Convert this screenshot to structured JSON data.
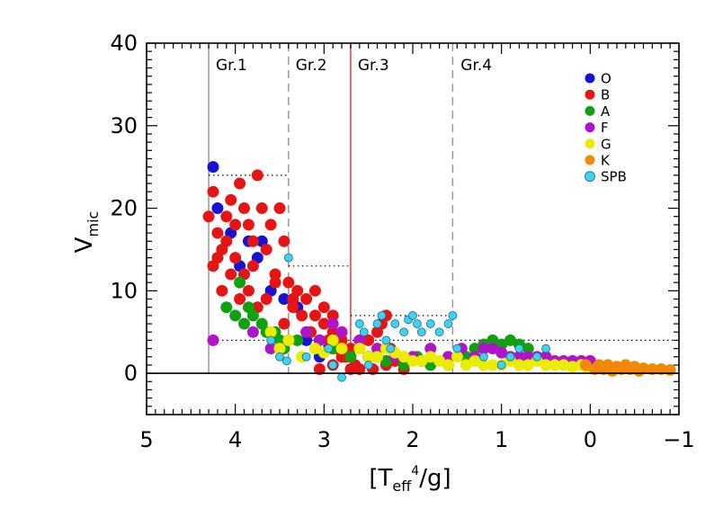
{
  "chart_data": {
    "type": "scatter",
    "title": "",
    "xlabel_parts": {
      "open": "[T",
      "sub": "eff",
      "sup": "4",
      "close": "/g]"
    },
    "ylabel_parts": {
      "main": "V",
      "sub": "mic"
    },
    "xlim": [
      5,
      -1
    ],
    "ylim": [
      -5,
      40
    ],
    "x_ticks": [
      5,
      4,
      3,
      2,
      1,
      0,
      -1
    ],
    "x_tick_labels": [
      "5",
      "4",
      "3",
      "2",
      "1",
      "0",
      "−1"
    ],
    "y_ticks": [
      0,
      10,
      20,
      30,
      40
    ],
    "y_tick_labels": [
      "0",
      "10",
      "20",
      "30",
      "40"
    ],
    "zero_line": 0,
    "group_boundaries": [
      {
        "x": 4.3,
        "style": "solid",
        "color": "#999999"
      },
      {
        "x": 3.4,
        "style": "dashed",
        "color": "#999999"
      },
      {
        "x": 2.7,
        "style": "solid",
        "color": "#e0403a"
      },
      {
        "x": 1.55,
        "style": "dashed",
        "color": "#999999"
      }
    ],
    "group_labels": [
      {
        "text": "Gr.1",
        "x": 4.22
      },
      {
        "text": "Gr.2",
        "x": 3.32
      },
      {
        "text": "Gr.3",
        "x": 2.62
      },
      {
        "text": "Gr.4",
        "x": 1.46
      }
    ],
    "dotted_limits": [
      {
        "x1": 4.3,
        "x2": 3.4,
        "y": 24
      },
      {
        "x1": 3.4,
        "x2": 2.7,
        "y": 13
      },
      {
        "x1": 2.7,
        "x2": 1.55,
        "y": 7
      },
      {
        "x1": 4.3,
        "x2": -0.95,
        "y": 4
      }
    ],
    "legend_position": "top-right",
    "series": [
      {
        "name": "O",
        "color": "#1414d2",
        "points": [
          [
            4.25,
            25
          ],
          [
            4.2,
            20
          ],
          [
            4.05,
            17
          ],
          [
            3.95,
            13
          ],
          [
            3.85,
            16
          ],
          [
            3.75,
            14
          ],
          [
            3.7,
            16
          ],
          [
            3.6,
            10
          ],
          [
            3.45,
            9
          ],
          [
            3.3,
            8
          ],
          [
            3.2,
            4
          ],
          [
            3.05,
            2
          ],
          [
            2.95,
            3
          ],
          [
            2.5,
            2
          ],
          [
            2.2,
            2
          ],
          [
            1.9,
            1.5
          ]
        ]
      },
      {
        "name": "B",
        "color": "#e61515",
        "points": [
          [
            4.3,
            19
          ],
          [
            4.25,
            22
          ],
          [
            4.2,
            17
          ],
          [
            4.15,
            15
          ],
          [
            4.1,
            19
          ],
          [
            4.05,
            21
          ],
          [
            4.0,
            18
          ],
          [
            3.95,
            23
          ],
          [
            3.9,
            20
          ],
          [
            3.85,
            18
          ],
          [
            3.8,
            16
          ],
          [
            3.75,
            24
          ],
          [
            3.7,
            20
          ],
          [
            3.65,
            15
          ],
          [
            3.6,
            18
          ],
          [
            3.55,
            12
          ],
          [
            3.5,
            20
          ],
          [
            3.45,
            16
          ],
          [
            3.4,
            11
          ],
          [
            3.35,
            9
          ],
          [
            3.3,
            10
          ],
          [
            3.25,
            7
          ],
          [
            3.2,
            9
          ],
          [
            3.15,
            5
          ],
          [
            3.1,
            7
          ],
          [
            3.05,
            4
          ],
          [
            3.0,
            6
          ],
          [
            2.95,
            4
          ],
          [
            2.9,
            5
          ],
          [
            2.85,
            3
          ],
          [
            2.8,
            4
          ],
          [
            2.75,
            2
          ],
          [
            2.7,
            3
          ],
          [
            2.65,
            1
          ],
          [
            2.6,
            3
          ],
          [
            2.5,
            2
          ],
          [
            2.45,
            0.5
          ],
          [
            2.4,
            2
          ],
          [
            2.3,
            1
          ],
          [
            2.2,
            1.5
          ],
          [
            2.1,
            0.5
          ],
          [
            4.25,
            13
          ],
          [
            4.15,
            10
          ],
          [
            4.05,
            12
          ],
          [
            3.95,
            9
          ],
          [
            3.85,
            10
          ],
          [
            3.75,
            8
          ],
          [
            3.65,
            9
          ],
          [
            3.55,
            11
          ],
          [
            3.45,
            6
          ],
          [
            3.35,
            8
          ],
          [
            3.1,
            10
          ],
          [
            3.0,
            8
          ],
          [
            2.9,
            7
          ],
          [
            2.8,
            2
          ],
          [
            2.6,
            0.5
          ],
          [
            2.4,
            5
          ],
          [
            2.3,
            7
          ],
          [
            2.25,
            3
          ],
          [
            2.9,
            1
          ],
          [
            3.05,
            0.5
          ],
          [
            2.7,
            0.5
          ],
          [
            2.5,
            4
          ],
          [
            2.35,
            6
          ],
          [
            4.2,
            14
          ],
          [
            4.1,
            16
          ],
          [
            4.0,
            14
          ],
          [
            3.9,
            12
          ],
          [
            3.8,
            13
          ]
        ]
      },
      {
        "name": "A",
        "color": "#10a010",
        "points": [
          [
            4.1,
            8
          ],
          [
            4.0,
            7
          ],
          [
            3.95,
            11
          ],
          [
            3.9,
            6
          ],
          [
            3.85,
            8
          ],
          [
            3.8,
            7
          ],
          [
            3.7,
            6
          ],
          [
            3.65,
            5
          ],
          [
            3.55,
            5
          ],
          [
            3.5,
            4
          ],
          [
            3.45,
            3
          ],
          [
            3.3,
            4
          ],
          [
            3.1,
            3
          ],
          [
            2.9,
            3
          ],
          [
            2.7,
            2
          ],
          [
            2.5,
            2
          ],
          [
            2.3,
            1.5
          ],
          [
            2.1,
            1
          ],
          [
            1.95,
            2
          ],
          [
            1.8,
            1
          ],
          [
            1.6,
            1
          ],
          [
            1.4,
            2
          ],
          [
            1.3,
            3
          ],
          [
            1.2,
            3.5
          ],
          [
            1.1,
            4
          ],
          [
            1.0,
            3.5
          ],
          [
            0.9,
            4
          ],
          [
            0.8,
            3.5
          ],
          [
            0.7,
            3
          ]
        ]
      },
      {
        "name": "F",
        "color": "#b014c8",
        "points": [
          [
            4.25,
            4
          ],
          [
            3.8,
            5
          ],
          [
            3.6,
            3
          ],
          [
            3.4,
            4
          ],
          [
            3.2,
            5
          ],
          [
            3.05,
            4
          ],
          [
            2.9,
            6
          ],
          [
            2.8,
            5
          ],
          [
            2.6,
            4
          ],
          [
            2.4,
            3
          ],
          [
            2.2,
            2
          ],
          [
            2.0,
            2
          ],
          [
            1.8,
            3
          ],
          [
            1.6,
            2
          ],
          [
            1.45,
            3
          ],
          [
            1.3,
            2
          ],
          [
            1.2,
            3
          ],
          [
            1.1,
            3
          ],
          [
            1.0,
            2.5
          ],
          [
            0.9,
            2
          ],
          [
            0.8,
            2
          ],
          [
            0.7,
            2
          ],
          [
            0.6,
            2
          ],
          [
            0.5,
            2
          ],
          [
            0.4,
            1.5
          ],
          [
            0.3,
            1.5
          ],
          [
            0.2,
            1.5
          ],
          [
            0.1,
            1.5
          ],
          [
            0.0,
            1.5
          ]
        ]
      },
      {
        "name": "G",
        "color": "#ecec00",
        "points": [
          [
            3.6,
            5
          ],
          [
            3.5,
            3
          ],
          [
            3.4,
            4
          ],
          [
            3.25,
            2
          ],
          [
            3.1,
            3
          ],
          [
            3.0,
            2.5
          ],
          [
            2.9,
            4
          ],
          [
            2.8,
            3
          ],
          [
            2.6,
            3
          ],
          [
            2.5,
            2
          ],
          [
            2.4,
            2
          ],
          [
            2.3,
            3
          ],
          [
            2.2,
            2.5
          ],
          [
            2.1,
            2
          ],
          [
            2.0,
            1.5
          ],
          [
            1.9,
            1.5
          ],
          [
            1.8,
            2
          ],
          [
            1.7,
            1.5
          ],
          [
            1.6,
            1
          ],
          [
            1.5,
            2
          ],
          [
            1.4,
            1
          ],
          [
            1.3,
            1.5
          ],
          [
            1.2,
            1
          ],
          [
            1.1,
            1
          ],
          [
            1.0,
            1
          ],
          [
            0.9,
            1.5
          ],
          [
            0.8,
            1
          ],
          [
            0.7,
            1
          ],
          [
            0.6,
            1.5
          ],
          [
            0.5,
            1
          ],
          [
            0.4,
            1
          ],
          [
            0.3,
            1
          ],
          [
            0.2,
            0.8
          ],
          [
            0.1,
            1
          ],
          [
            0.05,
            0.8
          ]
        ]
      },
      {
        "name": "K",
        "color": "#f08800",
        "points": [
          [
            0.05,
            1
          ],
          [
            -0.05,
            0.5
          ],
          [
            -0.1,
            1
          ],
          [
            -0.15,
            0.5
          ],
          [
            -0.2,
            1
          ],
          [
            -0.25,
            0.3
          ],
          [
            -0.3,
            0.8
          ],
          [
            -0.35,
            0.5
          ],
          [
            -0.4,
            1
          ],
          [
            -0.45,
            0.5
          ],
          [
            -0.5,
            0.8
          ],
          [
            -0.55,
            0.3
          ],
          [
            -0.6,
            0.6
          ],
          [
            -0.7,
            0.5
          ],
          [
            -0.8,
            0.5
          ],
          [
            -0.9,
            0.4
          ]
        ]
      },
      {
        "name": "SPB",
        "color": "#40d0f0",
        "points": [
          [
            3.6,
            4
          ],
          [
            3.5,
            2
          ],
          [
            3.42,
            1.5
          ],
          [
            3.4,
            14
          ],
          [
            3.2,
            2
          ],
          [
            2.95,
            3
          ],
          [
            2.9,
            1
          ],
          [
            2.8,
            -0.5
          ],
          [
            2.6,
            6
          ],
          [
            2.55,
            5
          ],
          [
            2.5,
            1
          ],
          [
            2.4,
            6
          ],
          [
            2.35,
            7
          ],
          [
            2.3,
            4
          ],
          [
            2.25,
            3
          ],
          [
            2.2,
            6
          ],
          [
            2.1,
            5
          ],
          [
            2.05,
            6.5
          ],
          [
            2.0,
            7
          ],
          [
            1.95,
            6
          ],
          [
            1.9,
            5
          ],
          [
            1.8,
            6
          ],
          [
            1.7,
            5
          ],
          [
            1.6,
            6
          ],
          [
            1.55,
            7
          ],
          [
            1.5,
            3
          ],
          [
            1.2,
            2
          ],
          [
            1.0,
            1
          ],
          [
            0.9,
            2
          ],
          [
            0.8,
            3
          ],
          [
            0.6,
            2
          ],
          [
            0.5,
            3
          ]
        ]
      }
    ]
  }
}
